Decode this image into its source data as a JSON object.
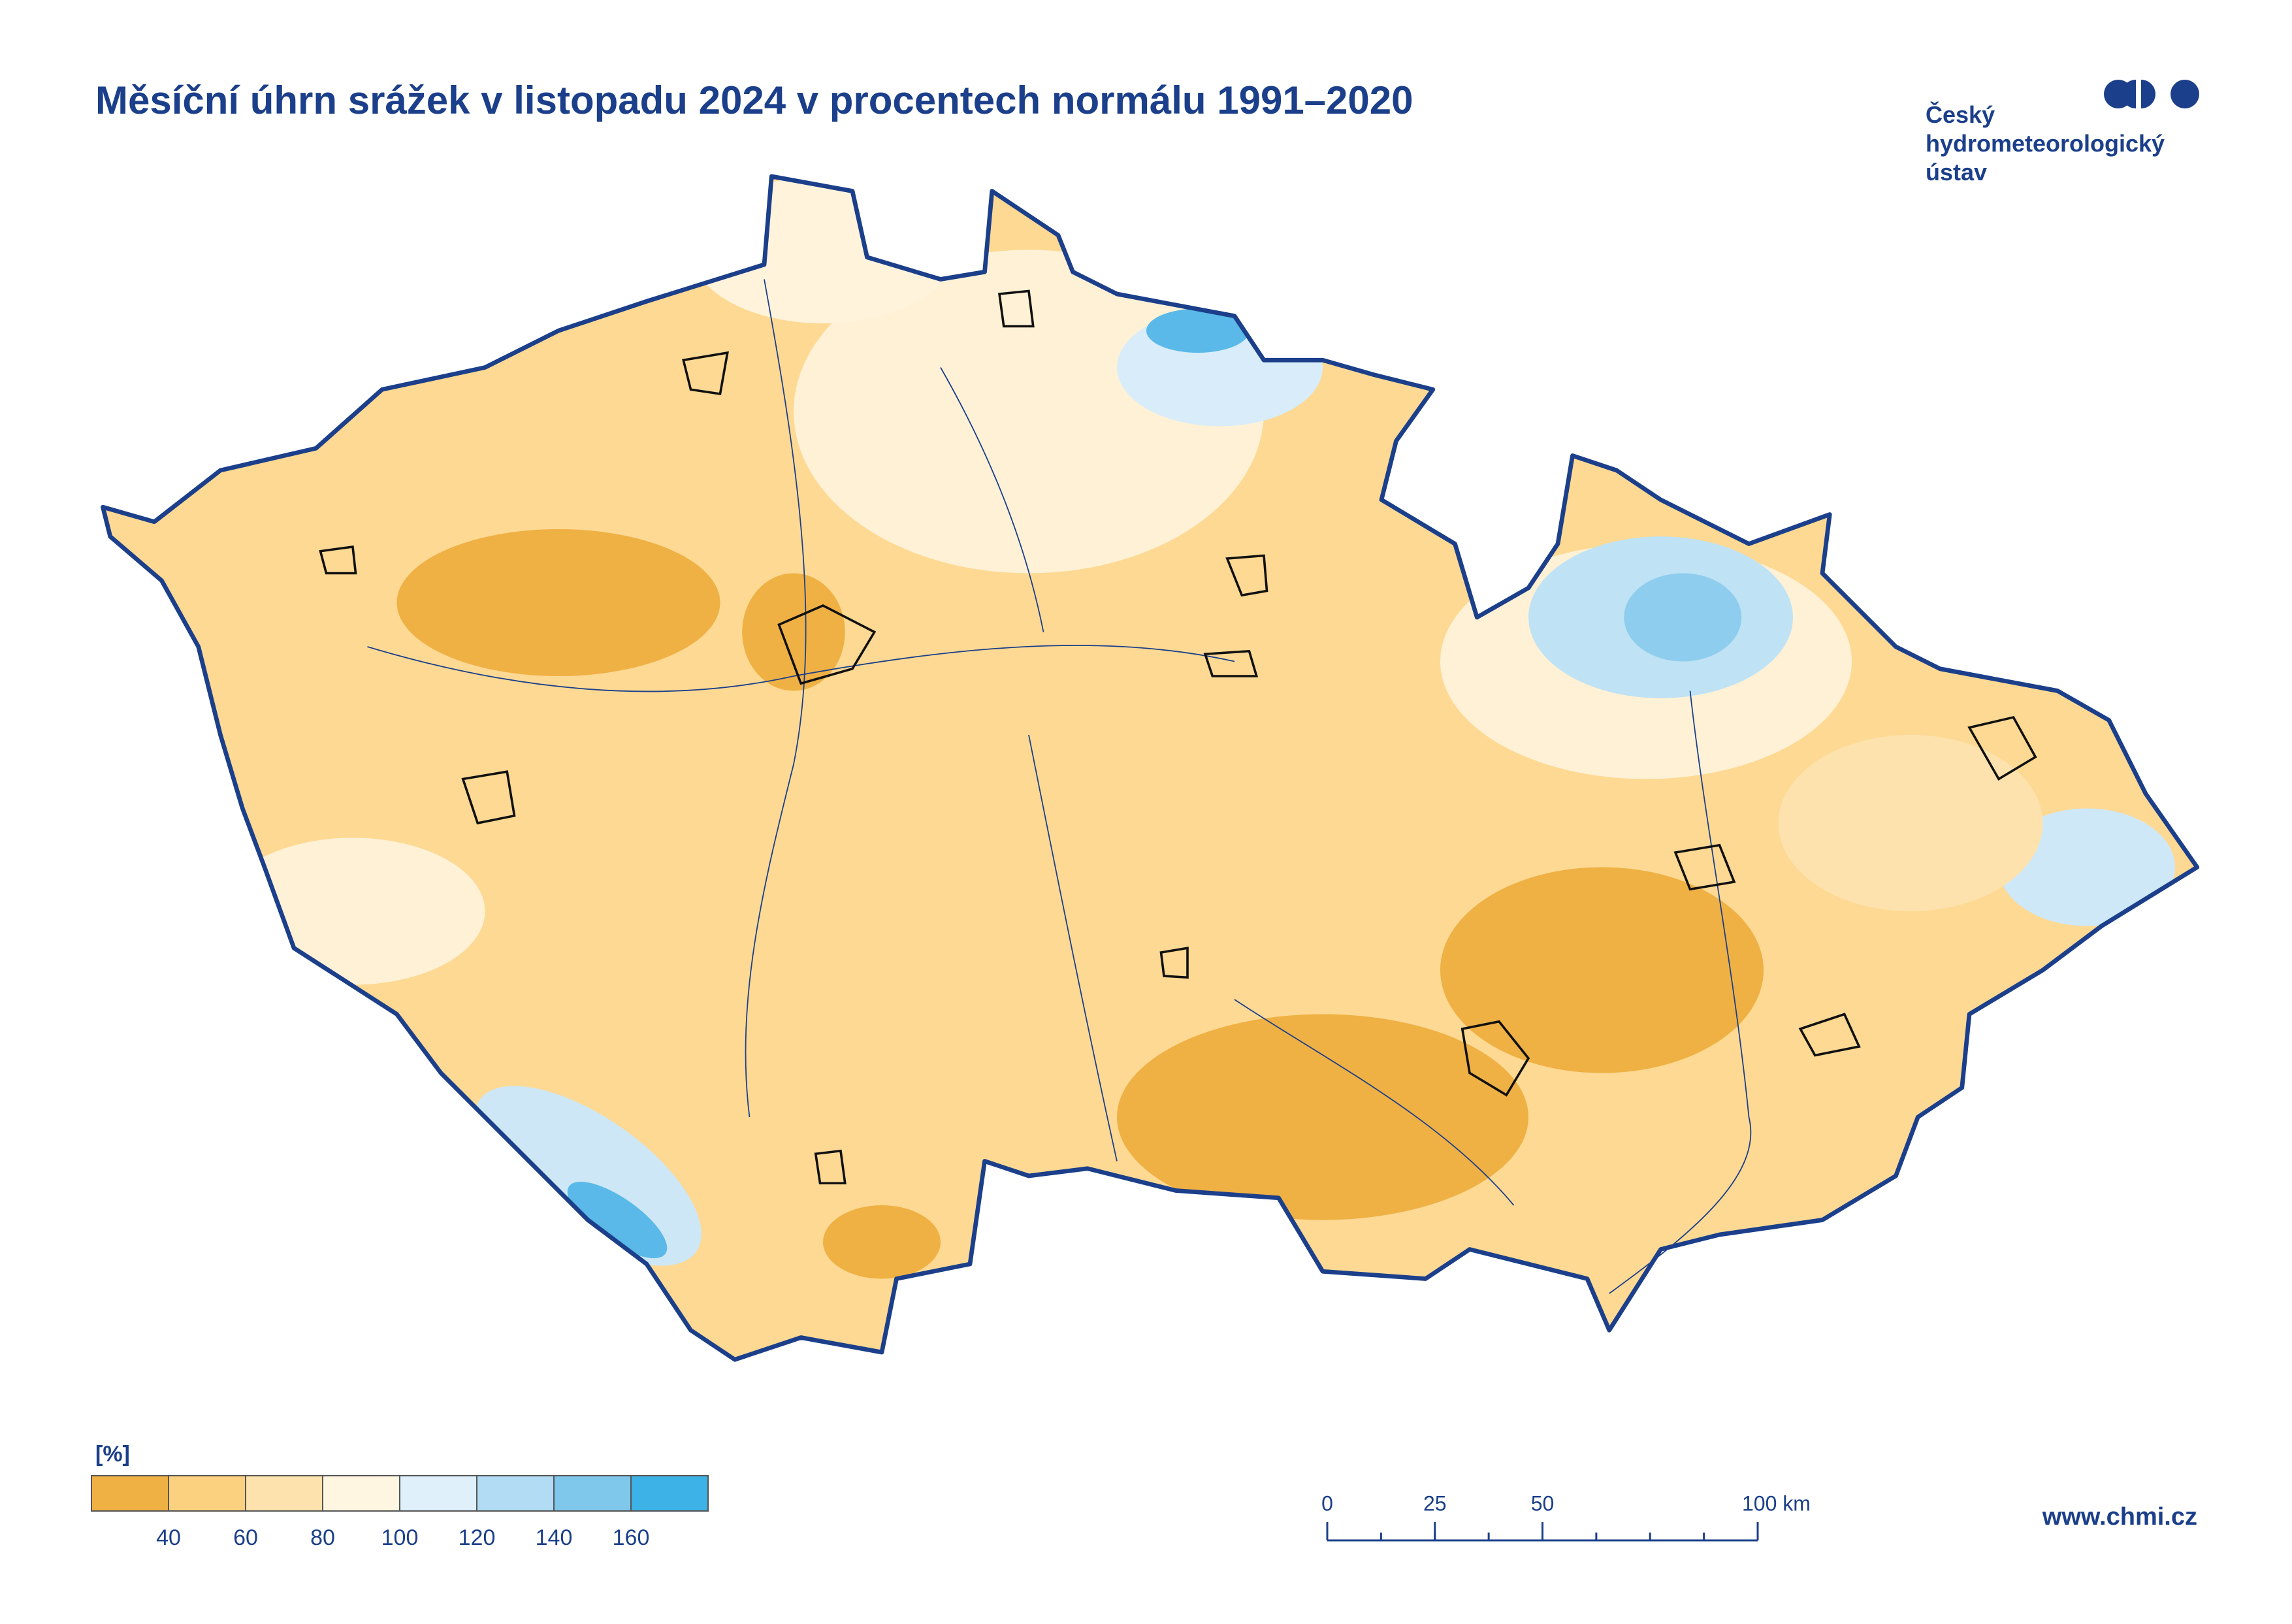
{
  "header": {
    "title": "Měsíční úhrn srážek v listopadu 2024 v procentech normálu 1991–2020"
  },
  "logo": {
    "lines": [
      "Český",
      "hydrometeorologický",
      "ústav"
    ]
  },
  "legend": {
    "unit": "[%]",
    "colors": [
      "#efb044",
      "#fbd07e",
      "#fde2ad",
      "#fff6e2",
      "#e0f0fb",
      "#b1dcf3",
      "#80c7ec",
      "#3cb2e6"
    ],
    "ticks": [
      40,
      60,
      80,
      100,
      120,
      140,
      160
    ]
  },
  "scale_bar": {
    "ticks": [
      0,
      25,
      50,
      {
        "value": 100,
        "label": "100 km"
      }
    ]
  },
  "footer": {
    "url": "www.chmi.cz"
  }
}
